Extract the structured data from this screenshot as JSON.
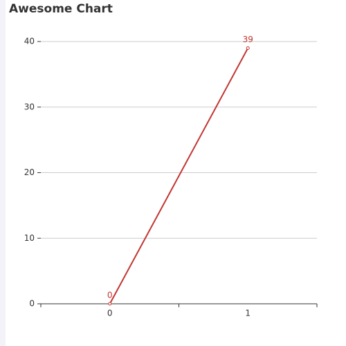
{
  "chart_data": {
    "type": "line",
    "title": "Awesome Chart",
    "categories": [
      "0",
      "1"
    ],
    "values": [
      0,
      39
    ],
    "color": "#c23531",
    "ylim": [
      0,
      40
    ],
    "yticks": [
      0,
      10,
      20,
      30,
      40
    ],
    "grid": true,
    "data_labels": true
  }
}
